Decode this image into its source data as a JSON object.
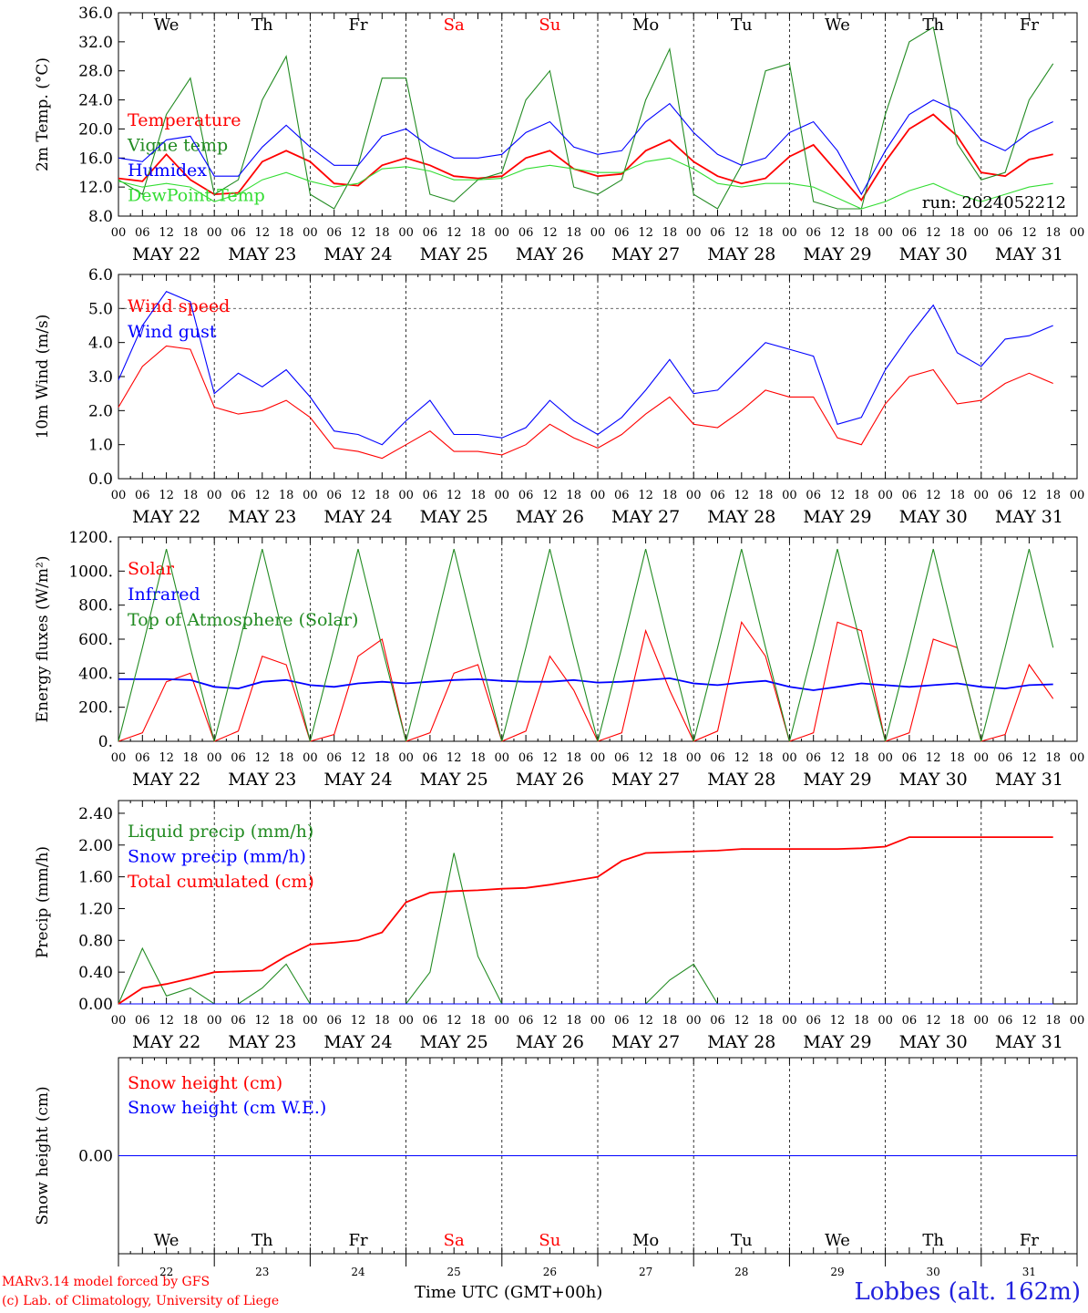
{
  "chart_data": [
    {
      "type": "line",
      "ylabel": "2m Temp. (°C)",
      "ylim": [
        8,
        36
      ],
      "yticks": [
        "8.0",
        "12.0",
        "16.0",
        "20.0",
        "24.0",
        "28.0",
        "32.0",
        "36.0"
      ],
      "run_label": "run: 2024052212",
      "x_hours": [
        0,
        6,
        12,
        18,
        24,
        30,
        36,
        42,
        48,
        54,
        60,
        66,
        72,
        78,
        84,
        90,
        96,
        102,
        108,
        114,
        120,
        126,
        132,
        138,
        144,
        150,
        156,
        162,
        168,
        174,
        180,
        186,
        192,
        198,
        204,
        210,
        216,
        222,
        228,
        234
      ],
      "series": [
        {
          "name": "Temperature",
          "color": "#ff0000",
          "values": [
            13.2,
            12.8,
            16.5,
            13,
            11,
            11.2,
            15.5,
            17,
            15.5,
            12.5,
            12.2,
            15,
            16,
            15,
            13.5,
            13.2,
            13.5,
            16,
            17,
            14.5,
            13.5,
            13.8,
            17,
            18.5,
            15.5,
            13.5,
            12.5,
            13.2,
            16.2,
            17.8,
            14,
            10.2,
            15.5,
            20,
            22,
            19,
            14,
            13.5,
            15.8,
            16.5
          ]
        },
        {
          "name": "Vigne temp",
          "color": "#228b22",
          "values": [
            13,
            11,
            22,
            27,
            11,
            13,
            24,
            30,
            11,
            9,
            15,
            27,
            27,
            11,
            10,
            13,
            14,
            24,
            28,
            12,
            11,
            13,
            24,
            31,
            11,
            9,
            15,
            28,
            29,
            10,
            9,
            9,
            22,
            32,
            34,
            18,
            13,
            14,
            24,
            29
          ]
        },
        {
          "name": "Humidex",
          "color": "#0000ff",
          "values": [
            16,
            15.5,
            18.5,
            19,
            13.5,
            13.5,
            17.5,
            20.5,
            17.5,
            15,
            15,
            19,
            20,
            17.5,
            16,
            16,
            16.5,
            19.5,
            21,
            17.5,
            16.5,
            17,
            21,
            23.5,
            19.5,
            16.5,
            15,
            16,
            19.5,
            21,
            17,
            11,
            17,
            22,
            24,
            22.5,
            18.5,
            17,
            19.5,
            21
          ]
        },
        {
          "name": "DewPoint Temp",
          "color": "#33dd33",
          "values": [
            12.8,
            12,
            12.5,
            12,
            10,
            11,
            13,
            14,
            12.8,
            12,
            12.5,
            14.5,
            14.8,
            14.2,
            13,
            13,
            13.2,
            14.5,
            15,
            14.5,
            14,
            14,
            15.5,
            16,
            14.5,
            12.5,
            12,
            12.5,
            12.5,
            12,
            10.5,
            9,
            10,
            11.5,
            12.5,
            11,
            10,
            11,
            12,
            12.5
          ]
        }
      ]
    },
    {
      "type": "line",
      "ylabel": "10m Wind (m/s)",
      "ylim": [
        0,
        6
      ],
      "yticks": [
        "0.0",
        "1.0",
        "2.0",
        "3.0",
        "4.0",
        "5.0",
        "6.0"
      ],
      "x_hours": [
        0,
        6,
        12,
        18,
        24,
        30,
        36,
        42,
        48,
        54,
        60,
        66,
        72,
        78,
        84,
        90,
        96,
        102,
        108,
        114,
        120,
        126,
        132,
        138,
        144,
        150,
        156,
        162,
        168,
        174,
        180,
        186,
        192,
        198,
        204,
        210,
        216,
        222,
        228,
        234
      ],
      "series": [
        {
          "name": "Wind speed",
          "color": "#ff0000",
          "values": [
            2.1,
            3.3,
            3.9,
            3.8,
            2.1,
            1.9,
            2,
            2.3,
            1.8,
            0.9,
            0.8,
            0.6,
            1,
            1.4,
            0.8,
            0.8,
            0.7,
            1,
            1.6,
            1.2,
            0.9,
            1.3,
            1.9,
            2.4,
            1.6,
            1.5,
            2,
            2.6,
            2.4,
            2.4,
            1.2,
            1,
            2.2,
            3,
            3.2,
            2.2,
            2.3,
            2.8,
            3.1,
            2.8
          ]
        },
        {
          "name": "Wind gust",
          "color": "#0000ff",
          "values": [
            2.9,
            4.5,
            5.5,
            5.2,
            2.5,
            3.1,
            2.7,
            3.2,
            2.4,
            1.4,
            1.3,
            1.0,
            1.7,
            2.3,
            1.3,
            1.3,
            1.2,
            1.5,
            2.3,
            1.7,
            1.3,
            1.8,
            2.6,
            3.5,
            2.5,
            2.6,
            3.3,
            4.0,
            3.8,
            3.6,
            1.6,
            1.8,
            3.2,
            4.2,
            5.1,
            3.7,
            3.3,
            4.1,
            4.2,
            4.5
          ]
        }
      ]
    },
    {
      "type": "line",
      "ylabel": "Energy fluxes (W/m²)",
      "ylim": [
        0,
        1200
      ],
      "yticks": [
        "0.",
        "200.",
        "400.",
        "600.",
        "800.",
        "1000.",
        "1200."
      ],
      "x_hours": [
        0,
        6,
        12,
        18,
        24,
        30,
        36,
        42,
        48,
        54,
        60,
        66,
        72,
        78,
        84,
        90,
        96,
        102,
        108,
        114,
        120,
        126,
        132,
        138,
        144,
        150,
        156,
        162,
        168,
        174,
        180,
        186,
        192,
        198,
        204,
        210,
        216,
        222,
        228,
        234
      ],
      "series": [
        {
          "name": "Solar",
          "color": "#ff0000",
          "values": [
            0,
            50,
            350,
            400,
            0,
            60,
            500,
            450,
            0,
            40,
            500,
            600,
            0,
            50,
            400,
            450,
            0,
            60,
            500,
            300,
            0,
            50,
            650,
            300,
            0,
            60,
            700,
            500,
            0,
            50,
            700,
            650,
            0,
            50,
            600,
            550,
            0,
            40,
            450,
            250
          ]
        },
        {
          "name": "Infrared",
          "color": "#0000ff",
          "values": [
            365,
            365,
            365,
            360,
            320,
            310,
            350,
            360,
            330,
            320,
            340,
            350,
            340,
            350,
            360,
            365,
            355,
            350,
            350,
            360,
            345,
            350,
            360,
            370,
            340,
            330,
            345,
            355,
            320,
            300,
            320,
            340,
            330,
            320,
            330,
            340,
            320,
            310,
            330,
            335
          ]
        },
        {
          "name": "Top of Atmosphere (Solar)",
          "color": "#228b22",
          "values": [
            0,
            550,
            1130,
            550,
            0,
            550,
            1130,
            550,
            0,
            550,
            1130,
            550,
            0,
            550,
            1130,
            550,
            0,
            550,
            1130,
            550,
            0,
            550,
            1130,
            550,
            0,
            550,
            1130,
            550,
            0,
            550,
            1130,
            550,
            0,
            550,
            1130,
            550,
            0,
            550,
            1130,
            550
          ]
        }
      ]
    },
    {
      "type": "line",
      "ylabel": "Precip (mm/h)",
      "ylim": [
        0,
        2.56
      ],
      "yticks": [
        "0.00",
        "0.40",
        "0.80",
        "1.20",
        "1.60",
        "2.00",
        "2.40"
      ],
      "x_hours": [
        0,
        6,
        12,
        18,
        24,
        30,
        36,
        42,
        48,
        54,
        60,
        66,
        72,
        78,
        84,
        90,
        96,
        102,
        108,
        114,
        120,
        126,
        132,
        138,
        144,
        150,
        156,
        162,
        168,
        174,
        180,
        186,
        192,
        198,
        204,
        210,
        216,
        222,
        228,
        234
      ],
      "series": [
        {
          "name": "Liquid precip (mm/h)",
          "color": "#228b22",
          "values": [
            0,
            0.7,
            0.1,
            0.2,
            0,
            0,
            0.2,
            0.5,
            0,
            0,
            0,
            0,
            0,
            0.4,
            1.9,
            0.6,
            0,
            0,
            0,
            0,
            0,
            0,
            0,
            0.3,
            0.5,
            0,
            0,
            0,
            0,
            0,
            0,
            0,
            0,
            0,
            0,
            0,
            0,
            0,
            0,
            0
          ]
        },
        {
          "name": "Snow precip (mm/h)",
          "color": "#0000ff",
          "values": [
            0,
            0,
            0,
            0,
            0,
            0,
            0,
            0,
            0,
            0,
            0,
            0,
            0,
            0,
            0,
            0,
            0,
            0,
            0,
            0,
            0,
            0,
            0,
            0,
            0,
            0,
            0,
            0,
            0,
            0,
            0,
            0,
            0,
            0,
            0,
            0,
            0,
            0,
            0,
            0
          ]
        },
        {
          "name": "Total cumulated (cm)",
          "color": "#ff0000",
          "values": [
            0,
            0.2,
            0.25,
            0.32,
            0.4,
            0.41,
            0.42,
            0.6,
            0.75,
            0.77,
            0.8,
            0.9,
            1.28,
            1.4,
            1.42,
            1.43,
            1.45,
            1.46,
            1.5,
            1.55,
            1.6,
            1.8,
            1.9,
            1.91,
            1.92,
            1.93,
            1.95,
            1.95,
            1.95,
            1.95,
            1.95,
            1.96,
            1.98,
            2.1,
            2.1,
            2.1,
            2.1,
            2.1,
            2.1,
            2.1
          ]
        }
      ]
    },
    {
      "type": "line",
      "ylabel": "Snow height (cm)",
      "ylim": [
        -1,
        1
      ],
      "yticks": [
        "0.00"
      ],
      "series": [
        {
          "name": "Snow height (cm)",
          "color": "#ff0000",
          "values": [
            0,
            0
          ]
        },
        {
          "name": "Snow height (cm W.E.)",
          "color": "#0000ff",
          "values": [
            0,
            0
          ]
        }
      ]
    }
  ],
  "days": [
    {
      "weekday": "We",
      "date": "MAY 22",
      "num": "22",
      "weekend": false
    },
    {
      "weekday": "Th",
      "date": "MAY 23",
      "num": "23",
      "weekend": false
    },
    {
      "weekday": "Fr",
      "date": "MAY 24",
      "num": "24",
      "weekend": false
    },
    {
      "weekday": "Sa",
      "date": "MAY 25",
      "num": "25",
      "weekend": true
    },
    {
      "weekday": "Su",
      "date": "MAY 26",
      "num": "26",
      "weekend": true
    },
    {
      "weekday": "Mo",
      "date": "MAY 27",
      "num": "27",
      "weekend": false
    },
    {
      "weekday": "Tu",
      "date": "MAY 28",
      "num": "28",
      "weekend": false
    },
    {
      "weekday": "We",
      "date": "MAY 29",
      "num": "29",
      "weekend": false
    },
    {
      "weekday": "Th",
      "date": "MAY 30",
      "num": "30",
      "weekend": false
    },
    {
      "weekday": "Fr",
      "date": "MAY 31",
      "num": "31",
      "weekend": false
    }
  ],
  "hour_ticks": [
    "00",
    "06",
    "12",
    "18"
  ],
  "footer": {
    "model_line": "MARv3.14 model forced by GFS",
    "credit_line": "(c) Lab. of Climatology, University of Liege",
    "time_label": "Time UTC (GMT+00h)",
    "station": "Lobbes (alt. 162m)"
  }
}
